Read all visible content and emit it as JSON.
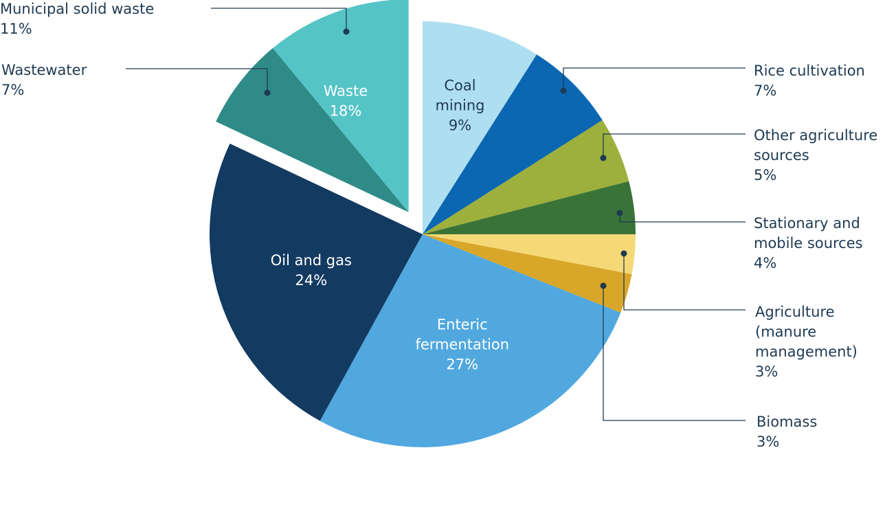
{
  "chart_data": {
    "type": "pie",
    "slices": [
      {
        "name": "Coal mining",
        "label_lines": [
          "Coal",
          "mining"
        ],
        "value": 9,
        "value_label": "9%",
        "color": "#aedff0",
        "label_style": "inside-dark"
      },
      {
        "name": "Rice cultivation",
        "label_lines": [
          "Rice cultivation"
        ],
        "value": 7,
        "value_label": "7%",
        "color": "#0b67b2",
        "label_style": "outside"
      },
      {
        "name": "Other agriculture sources",
        "label_lines": [
          "Other agriculture",
          "sources"
        ],
        "value": 5,
        "value_label": "5%",
        "color": "#9db03c",
        "label_style": "outside"
      },
      {
        "name": "Stationary and mobile sources",
        "label_lines": [
          "Stationary and",
          "mobile sources"
        ],
        "value": 4,
        "value_label": "4%",
        "color": "#3a7337",
        "label_style": "outside"
      },
      {
        "name": "Agriculture (manure management)",
        "label_lines": [
          "Agriculture",
          "(manure",
          "management)"
        ],
        "value": 3,
        "value_label": "3%",
        "color": "#f6d977",
        "label_style": "outside"
      },
      {
        "name": "Biomass",
        "label_lines": [
          "Biomass"
        ],
        "value": 3,
        "value_label": "3%",
        "color": "#d8a729",
        "label_style": "outside"
      },
      {
        "name": "Enteric fermentation",
        "label_lines": [
          "Enteric",
          "fermentation"
        ],
        "value": 27,
        "value_label": "27%",
        "color": "#50a8df",
        "label_style": "inside-light"
      },
      {
        "name": "Oil and gas",
        "label_lines": [
          "Oil and gas"
        ],
        "value": 24,
        "value_label": "24%",
        "color": "#133a61",
        "label_style": "inside-light"
      },
      {
        "name": "Wastewater",
        "label_lines": [
          "Wastewater"
        ],
        "value": 7,
        "value_label": "7%",
        "color": "#2f8b88",
        "label_style": "outside",
        "group": "Waste"
      },
      {
        "name": "Municipal solid waste",
        "label_lines": [
          "Municipal solid waste"
        ],
        "value": 11,
        "value_label": "11%",
        "color": "#55c4c6",
        "label_style": "outside",
        "group": "Waste"
      }
    ],
    "groups": [
      {
        "name": "Waste",
        "label_lines": [
          "Waste"
        ],
        "value": 18,
        "value_label": "18%",
        "exploded": true
      }
    ],
    "legend": "none"
  }
}
